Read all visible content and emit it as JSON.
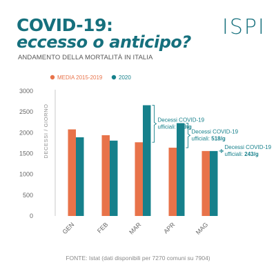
{
  "header": {
    "title_line1": "COVID-19:",
    "title_line2": "eccesso o anticipo?",
    "subtitle": "ANDAMENTO DELLA MORTALITÀ IN ITALIA",
    "logo": "ISPI"
  },
  "colors": {
    "media": "#e8734a",
    "y2020": "#16808b",
    "title": "#16707d"
  },
  "chart_data": {
    "type": "bar",
    "title": "",
    "xlabel": "",
    "ylabel": "DECESSI / GIORNO",
    "ylim": [
      0,
      3000
    ],
    "yticks": [
      0,
      500,
      1000,
      1500,
      2000,
      2500,
      3000
    ],
    "categories": [
      "GEN",
      "FEB",
      "MAR",
      "APR",
      "MAG"
    ],
    "legend_position": "top-left",
    "grid": false,
    "series": [
      {
        "name": "MEDIA 2015-2019",
        "values": [
          2080,
          1940,
          1770,
          1640,
          1560
        ]
      },
      {
        "name": "2020",
        "values": [
          1890,
          1810,
          2660,
          2230,
          1560
        ]
      }
    ],
    "annotations": [
      {
        "category": "MAR",
        "line1": "Decessi COVID-19",
        "line2_prefix": "ufficiali: ",
        "line2_value": "399/g"
      },
      {
        "category": "APR",
        "line1": "Decessi COVID-19",
        "line2_prefix": "ufficiali: ",
        "line2_value": "518/g"
      },
      {
        "category": "MAG",
        "line1": "Decessi COVID-19",
        "line2_prefix": "ufficiali: ",
        "line2_value": "243/g"
      }
    ]
  },
  "footer": {
    "source": "FONTE: Istat (dati disponibili per 7270 comuni su 7904)"
  }
}
